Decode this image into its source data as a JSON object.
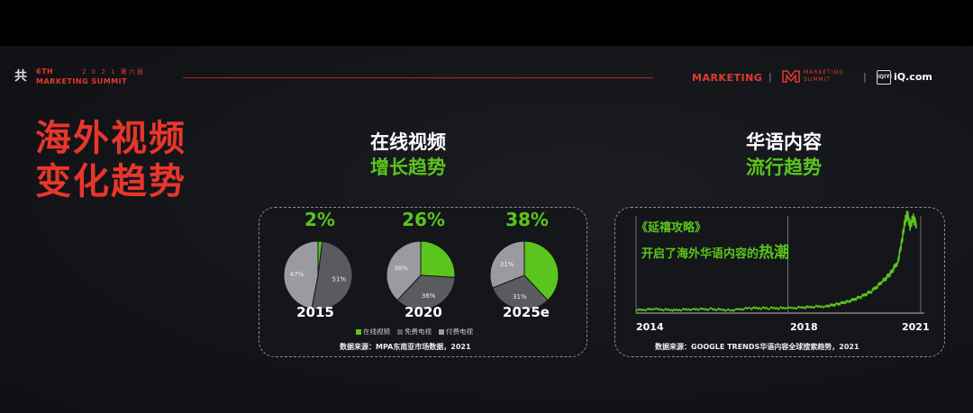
{
  "header": {
    "logo_char": "共",
    "edition": "6TH",
    "year_label": "2 0 2 1 第六届",
    "summit_name": "MARKETING SUMMIT",
    "brand_marketing": "MARKETING",
    "brand_summit": "MARKETING SUMMIT",
    "separator": "|",
    "iqiyi_icon": "iQIYI",
    "iq_domain": "iQ.com"
  },
  "main_title": "海外视频变化趋势",
  "section_left": {
    "title": "在线视频",
    "subtitle": "增长趋势"
  },
  "section_right": {
    "title": "华语内容",
    "subtitle": "流行趋势"
  },
  "colors": {
    "accent_red": "#e8362b",
    "green": "#5ac51c",
    "free_tv": "#5a5b5e",
    "pay_tv": "#9a9b9e"
  },
  "chart_data": [
    {
      "type": "pie",
      "pies": [
        {
          "year": "2015",
          "headline": "2%",
          "slices": [
            {
              "name": "在线视频",
              "value": 2,
              "label": ""
            },
            {
              "name": "免费电视",
              "value": 51,
              "label": "51%"
            },
            {
              "name": "付费电视",
              "value": 47,
              "label": "47%"
            }
          ]
        },
        {
          "year": "2020",
          "headline": "26%",
          "slices": [
            {
              "name": "在线视频",
              "value": 26,
              "label": ""
            },
            {
              "name": "免费电视",
              "value": 36,
              "label": "36%"
            },
            {
              "name": "付费电视",
              "value": 38,
              "label": "38%"
            }
          ]
        },
        {
          "year": "2025e",
          "headline": "38%",
          "slices": [
            {
              "name": "在线视频",
              "value": 38,
              "label": ""
            },
            {
              "name": "免费电视",
              "value": 31,
              "label": "31%"
            },
            {
              "name": "付费电视",
              "value": 31,
              "label": "31%"
            }
          ]
        }
      ],
      "legend": [
        "在线视频",
        "免费电视",
        "付费电视"
      ],
      "source": "数据来源：MPA东南亚市场数据，2021"
    },
    {
      "type": "line",
      "x_ticks": [
        "2014",
        "2018",
        "2021"
      ],
      "xlim": [
        2014,
        2021.5
      ],
      "ylim": [
        0,
        100
      ],
      "marker_year": 2018,
      "points": [
        [
          2014,
          3
        ],
        [
          2014.5,
          4
        ],
        [
          2015,
          3
        ],
        [
          2015.5,
          4
        ],
        [
          2016,
          4
        ],
        [
          2016.5,
          3
        ],
        [
          2017,
          5
        ],
        [
          2017.5,
          5
        ],
        [
          2018,
          5
        ],
        [
          2018.5,
          6
        ],
        [
          2019,
          7
        ],
        [
          2019.3,
          9
        ],
        [
          2019.6,
          12
        ],
        [
          2019.9,
          16
        ],
        [
          2020.2,
          22
        ],
        [
          2020.5,
          32
        ],
        [
          2020.7,
          40
        ],
        [
          2020.9,
          52
        ],
        [
          2021.0,
          72
        ],
        [
          2021.08,
          92
        ],
        [
          2021.15,
          100
        ],
        [
          2021.22,
          88
        ],
        [
          2021.3,
          96
        ],
        [
          2021.38,
          90
        ]
      ],
      "annotation_title": "《延禧攻略》",
      "annotation_text_pre": "开启了海外华语内容的",
      "annotation_text_big": "热潮",
      "source": "数据来源：GOOGLE TRENDS华语内容全球搜索趋势，2021"
    }
  ]
}
